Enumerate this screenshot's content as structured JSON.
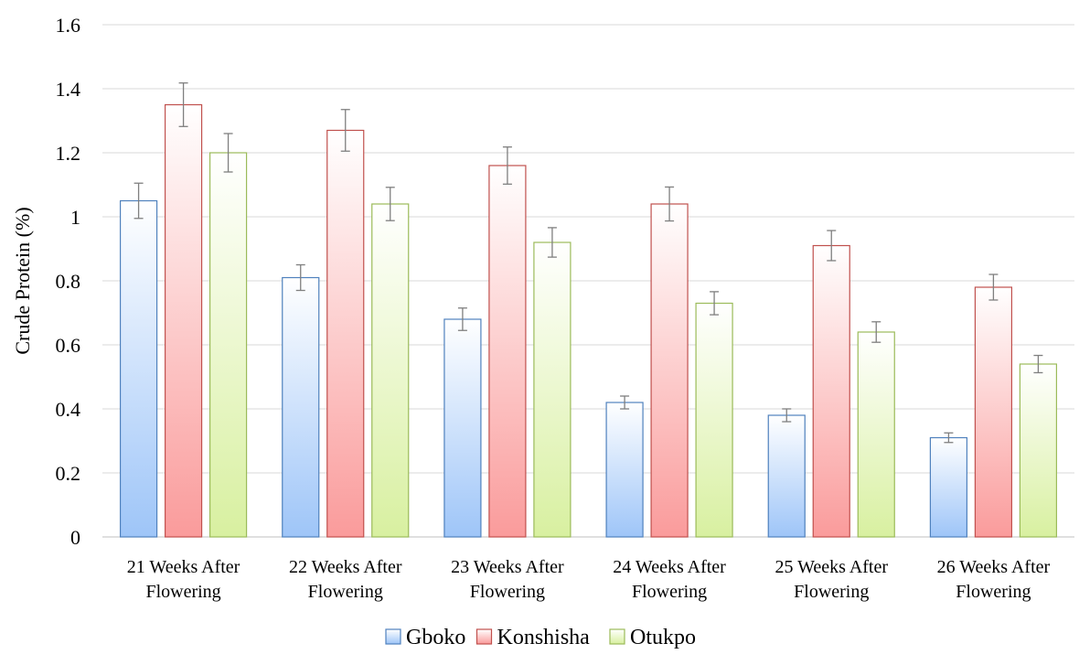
{
  "chart_data": {
    "type": "bar",
    "title": "",
    "xlabel": "",
    "ylabel": "Crude Protein (%)",
    "ylim": [
      0,
      1.6
    ],
    "yticks": [
      "0",
      "0.2",
      "0.4",
      "0.6",
      "0.8",
      "1",
      "1.2",
      "1.4",
      "1.6"
    ],
    "ytick_values": [
      0,
      0.2,
      0.4,
      0.6,
      0.8,
      1.0,
      1.2,
      1.4,
      1.6
    ],
    "grid": true,
    "legend_position": "bottom",
    "categories": [
      [
        "21 Weeks After",
        "Flowering"
      ],
      [
        "22 Weeks After",
        "Flowering"
      ],
      [
        "23 Weeks After",
        "Flowering"
      ],
      [
        "24 Weeks After",
        "Flowering"
      ],
      [
        "25 Weeks After",
        "Flowering"
      ],
      [
        "26 Weeks After",
        "Flowering"
      ]
    ],
    "series": [
      {
        "name": "Gboko",
        "values": [
          1.05,
          0.81,
          0.68,
          0.42,
          0.38,
          0.31
        ],
        "errors": [
          0.055,
          0.04,
          0.035,
          0.02,
          0.02,
          0.015
        ],
        "fill_top": "#ffffff",
        "fill_bottom": "#9ec5f8",
        "stroke": "#4f81bd"
      },
      {
        "name": "Konshisha",
        "values": [
          1.35,
          1.27,
          1.16,
          1.04,
          0.91,
          0.78
        ],
        "errors": [
          0.068,
          0.065,
          0.058,
          0.053,
          0.047,
          0.04
        ],
        "fill_top": "#ffffff",
        "fill_bottom": "#fa9b9b",
        "stroke": "#c0504d"
      },
      {
        "name": "Otukpo",
        "values": [
          1.2,
          1.04,
          0.92,
          0.73,
          0.64,
          0.54
        ],
        "errors": [
          0.06,
          0.052,
          0.046,
          0.036,
          0.032,
          0.027
        ],
        "fill_top": "#ffffff",
        "fill_bottom": "#d8f0a0",
        "stroke": "#9bbb59"
      }
    ]
  }
}
